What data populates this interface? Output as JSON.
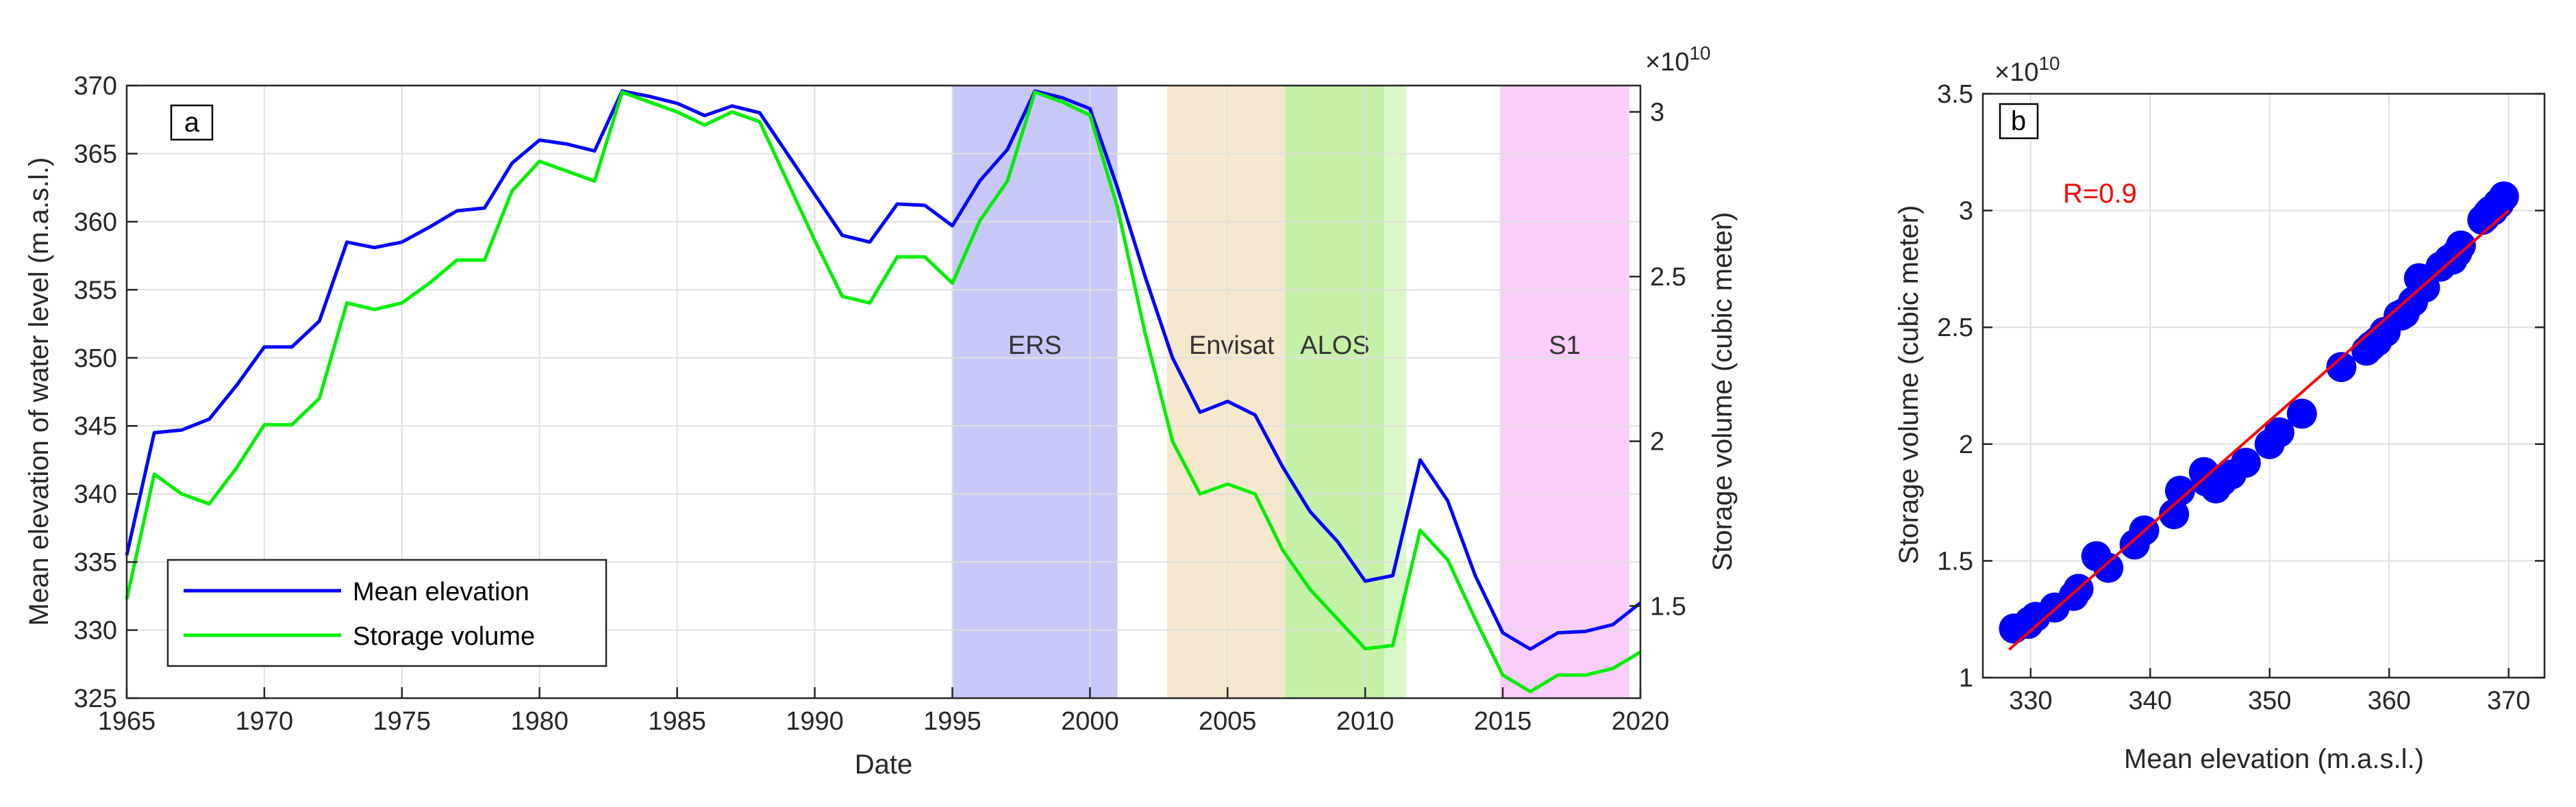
{
  "chart_data": [
    {
      "panel": "a",
      "type": "line",
      "xlabel": "Date",
      "ylabel": "Mean elevation of water level (m.a.s.l.)",
      "y2label": "Storage volume (cubic meter)",
      "y2_exponent": "×10",
      "y2_exponent_power": "10",
      "xlim": [
        1965,
        2020
      ],
      "ylim": [
        325,
        370
      ],
      "y2lim": [
        1.22,
        3.08
      ],
      "xticks": [
        "1965",
        "1970",
        "1975",
        "1980",
        "1985",
        "1990",
        "1995",
        "2000",
        "2005",
        "2010",
        "2015",
        "2020"
      ],
      "yticks": [
        "325",
        "330",
        "335",
        "340",
        "345",
        "350",
        "355",
        "360",
        "365",
        "370"
      ],
      "y2ticks": [
        "1.5",
        "2",
        "2.5",
        "3"
      ],
      "grid": true,
      "legend_position": "bottom-left",
      "bands": [
        {
          "label": "ERS",
          "from": 1995,
          "to": 2001,
          "color": "#c8c8f8"
        },
        {
          "label": "Envisat",
          "from": 2002.8,
          "to": 2007.1,
          "color": "#f6e8cc"
        },
        {
          "label": "ALOS",
          "from": 2007.1,
          "to": 2010.7,
          "color": "#c4f0a8"
        },
        {
          "label": "",
          "from": 2010.7,
          "to": 2011.5,
          "color": "#d8f8c8"
        },
        {
          "label": "S1",
          "from": 2014.9,
          "to": 2019.6,
          "color": "#fdcdfd"
        }
      ],
      "series": [
        {
          "name": "Mean elevation",
          "color": "#0000ff",
          "axis": "left",
          "x": [
            1965,
            1966,
            1967,
            1968,
            1969,
            1970,
            1971,
            1972,
            1973,
            1974,
            1975,
            1976,
            1977,
            1978,
            1979,
            1980,
            1981,
            1982,
            1983,
            1984,
            1985,
            1986,
            1987,
            1988,
            1989,
            1990,
            1991,
            1992,
            1993,
            1994,
            1995,
            1996,
            1997,
            1998,
            1999,
            2000,
            2001,
            2002,
            2003,
            2004,
            2005,
            2006,
            2007,
            2008,
            2009,
            2010,
            2011,
            2012,
            2013,
            2014,
            2015,
            2016,
            2017,
            2018,
            2019,
            2020
          ],
          "y": [
            335.5,
            344.5,
            344.7,
            345.5,
            348,
            350.8,
            350.8,
            352.7,
            358.5,
            358.1,
            358.5,
            359.6,
            360.8,
            361,
            364.3,
            366,
            365.7,
            365.2,
            369.6,
            369.2,
            368.7,
            367.8,
            368.5,
            368,
            365,
            362,
            359,
            358.5,
            361.3,
            361.2,
            359.7,
            363,
            365.3,
            369.6,
            369.1,
            368.3,
            362.5,
            356,
            350,
            346,
            346.8,
            345.8,
            342,
            338.7,
            336.5,
            333.6,
            334,
            342.5,
            339.5,
            334,
            329.8,
            328.6,
            329.8,
            329.9,
            330.4,
            332
          ]
        },
        {
          "name": "Storage volume",
          "color": "#00ee00",
          "axis": "right",
          "x": [
            1965,
            1966,
            1967,
            1968,
            1969,
            1970,
            1971,
            1972,
            1973,
            1974,
            1975,
            1976,
            1977,
            1978,
            1979,
            1980,
            1981,
            1982,
            1983,
            1984,
            1985,
            1986,
            1987,
            1988,
            1989,
            1990,
            1991,
            1992,
            1993,
            1994,
            1995,
            1996,
            1997,
            1998,
            1999,
            2000,
            2001,
            2002,
            2003,
            2004,
            2005,
            2006,
            2007,
            2008,
            2009,
            2010,
            2011,
            2012,
            2013,
            2014,
            2015,
            2016,
            2017,
            2018,
            2019,
            2020
          ],
          "y": [
            1.52,
            1.9,
            1.84,
            1.81,
            1.92,
            2.05,
            2.05,
            2.13,
            2.42,
            2.4,
            2.42,
            2.48,
            2.55,
            2.55,
            2.76,
            2.85,
            2.82,
            2.79,
            3.06,
            3.03,
            3.0,
            2.96,
            3.0,
            2.97,
            2.79,
            2.61,
            2.44,
            2.42,
            2.56,
            2.56,
            2.48,
            2.67,
            2.79,
            3.06,
            3.03,
            2.99,
            2.71,
            2.33,
            2.0,
            1.84,
            1.87,
            1.84,
            1.67,
            1.55,
            1.46,
            1.37,
            1.38,
            1.73,
            1.64,
            1.46,
            1.29,
            1.24,
            1.29,
            1.29,
            1.31,
            1.36
          ]
        }
      ],
      "legend": [
        "Mean elevation",
        "Storage volume"
      ],
      "annotations": [
        "a"
      ]
    },
    {
      "panel": "b",
      "type": "scatter",
      "xlabel": "Mean elevation (m.a.s.l.)",
      "ylabel": "Storage volume (cubic meter)",
      "y_exponent": "×10",
      "y_exponent_power": "10",
      "xlim": [
        326,
        373
      ],
      "ylim": [
        1,
        3.5
      ],
      "xticks": [
        "330",
        "340",
        "350",
        "360",
        "370"
      ],
      "yticks": [
        "1",
        "1.5",
        "2",
        "2.5",
        "3",
        "3.5"
      ],
      "grid": true,
      "points": {
        "color": "#0000ff",
        "x": [
          328.6,
          329.8,
          329.9,
          330.4,
          332,
          333.6,
          334,
          335.5,
          336.5,
          338.7,
          339.5,
          342,
          342.5,
          344.5,
          344.7,
          345.5,
          345.8,
          346,
          346.8,
          348,
          350,
          350.8,
          350.8,
          352.7,
          356,
          358.1,
          358.5,
          358.5,
          359,
          359.6,
          359.7,
          360.8,
          361,
          361.2,
          361.3,
          362,
          362.5,
          363,
          364.3,
          365,
          365.2,
          365.3,
          365.7,
          366,
          367.8,
          368,
          368.3,
          368.5,
          368.7,
          369.1,
          369.2,
          369.6,
          369.6
        ],
        "y": [
          1.21,
          1.23,
          1.24,
          1.26,
          1.3,
          1.35,
          1.38,
          1.52,
          1.47,
          1.57,
          1.63,
          1.7,
          1.8,
          1.88,
          1.84,
          1.81,
          1.84,
          1.84,
          1.87,
          1.92,
          2.0,
          2.05,
          2.05,
          2.13,
          2.33,
          2.4,
          2.42,
          2.42,
          2.44,
          2.48,
          2.48,
          2.55,
          2.55,
          2.56,
          2.56,
          2.61,
          2.71,
          2.67,
          2.76,
          2.79,
          2.79,
          2.79,
          2.82,
          2.85,
          2.96,
          2.97,
          2.99,
          3.0,
          3.0,
          3.03,
          3.03,
          3.06,
          3.06
        ]
      },
      "fit": {
        "color": "#ff0000",
        "x": [
          328.2,
          370
        ],
        "y": [
          1.12,
          3.0
        ]
      },
      "annotation": "R=0.9",
      "annotations": [
        "b"
      ]
    }
  ]
}
